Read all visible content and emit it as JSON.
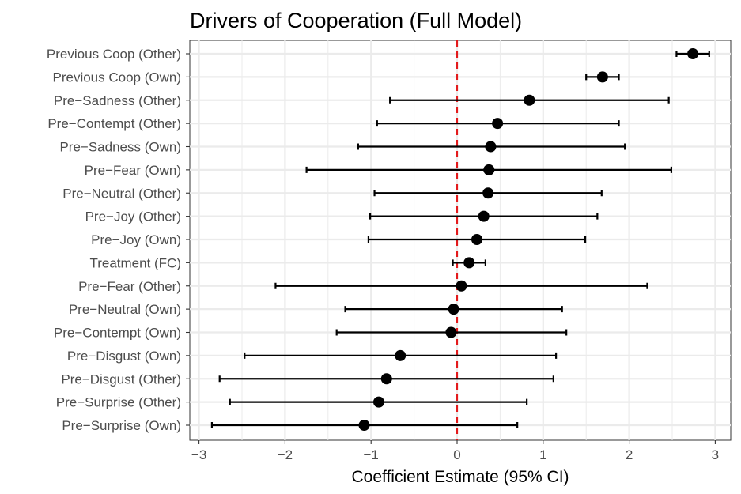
{
  "chart_data": {
    "type": "forest",
    "title": "Drivers of Cooperation (Full Model)",
    "xlabel": "Coefficient Estimate (95% CI)",
    "ylabel": "",
    "xlim": [
      -3.2,
      3.2
    ],
    "x_ticks": [
      -3,
      -2,
      -1,
      0,
      1,
      2,
      3
    ],
    "x_tick_labels": [
      "−3",
      "−2",
      "−1",
      "0",
      "1",
      "2",
      "3"
    ],
    "reference_line": {
      "x": 0,
      "color": "#e31a1c",
      "style": "dashed"
    },
    "grid": true,
    "rows": [
      {
        "label": "Previous Coop (Other)",
        "estimate": 2.74,
        "lower": 2.55,
        "upper": 2.93
      },
      {
        "label": "Previous Coop (Own)",
        "estimate": 1.69,
        "lower": 1.5,
        "upper": 1.88
      },
      {
        "label": "Pre−Sadness (Other)",
        "estimate": 0.84,
        "lower": -0.78,
        "upper": 2.46
      },
      {
        "label": "Pre−Contempt (Other)",
        "estimate": 0.47,
        "lower": -0.93,
        "upper": 1.88
      },
      {
        "label": "Pre−Sadness (Own)",
        "estimate": 0.39,
        "lower": -1.15,
        "upper": 1.95
      },
      {
        "label": "Pre−Fear (Own)",
        "estimate": 0.37,
        "lower": -1.75,
        "upper": 2.49
      },
      {
        "label": "Pre−Neutral (Other)",
        "estimate": 0.36,
        "lower": -0.96,
        "upper": 1.68
      },
      {
        "label": "Pre−Joy (Other)",
        "estimate": 0.31,
        "lower": -1.01,
        "upper": 1.63
      },
      {
        "label": "Pre−Joy (Own)",
        "estimate": 0.23,
        "lower": -1.03,
        "upper": 1.49
      },
      {
        "label": "Treatment (FC)",
        "estimate": 0.14,
        "lower": -0.05,
        "upper": 0.33
      },
      {
        "label": "Pre−Fear (Other)",
        "estimate": 0.05,
        "lower": -2.11,
        "upper": 2.21
      },
      {
        "label": "Pre−Neutral (Own)",
        "estimate": -0.04,
        "lower": -1.3,
        "upper": 1.22
      },
      {
        "label": "Pre−Contempt (Own)",
        "estimate": -0.07,
        "lower": -1.4,
        "upper": 1.27
      },
      {
        "label": "Pre−Disgust (Own)",
        "estimate": -0.66,
        "lower": -2.47,
        "upper": 1.15
      },
      {
        "label": "Pre−Disgust (Other)",
        "estimate": -0.82,
        "lower": -2.76,
        "upper": 1.12
      },
      {
        "label": "Pre−Surprise (Other)",
        "estimate": -0.91,
        "lower": -2.64,
        "upper": 0.81
      },
      {
        "label": "Pre−Surprise (Own)",
        "estimate": -1.08,
        "lower": -2.85,
        "upper": 0.7
      }
    ],
    "colors": {
      "point": "#000000",
      "errorbar": "#000000",
      "grid": "#ebebeb",
      "axis_text": "#4d4d4d"
    }
  }
}
